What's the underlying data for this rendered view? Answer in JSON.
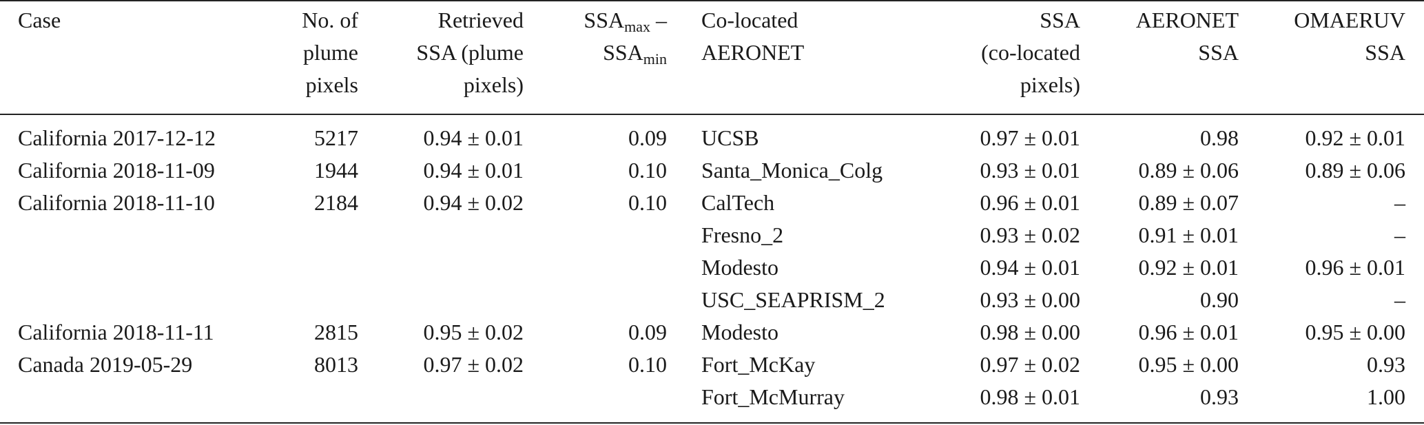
{
  "header": {
    "case": [
      "Case"
    ],
    "plume_pixels": [
      "No. of",
      "plume",
      "pixels"
    ],
    "retrieved_ssa": [
      "Retrieved",
      "SSA (plume",
      "pixels)"
    ],
    "ssa_range": {
      "line1_base": "SSA",
      "line1_sub": "max",
      "line1_tail": " –",
      "line2_base": "SSA",
      "line2_sub": "min"
    },
    "colocated_aeronet": [
      "Co-located",
      "AERONET"
    ],
    "ssa_colocated": [
      "SSA",
      "(co-located",
      "pixels)"
    ],
    "aeronet_ssa": [
      "AERONET",
      "SSA"
    ],
    "omaeruv_ssa": [
      "OMAERUV",
      "SSA"
    ]
  },
  "rows": [
    {
      "case": "California 2017-12-12",
      "pixels": "5217",
      "retrieved": "0.94 ± 0.01",
      "diff": "0.09",
      "site": "UCSB",
      "ssa_coloc": "0.97 ± 0.01",
      "aeronet": "0.98",
      "omaeruv": "0.92 ± 0.01"
    },
    {
      "case": "California 2018-11-09",
      "pixels": "1944",
      "retrieved": "0.94 ± 0.01",
      "diff": "0.10",
      "site": "Santa_Monica_Colg",
      "ssa_coloc": "0.93 ± 0.01",
      "aeronet": "0.89 ± 0.06",
      "omaeruv": "0.89 ± 0.06"
    },
    {
      "case": "California 2018-11-10",
      "pixels": "2184",
      "retrieved": "0.94 ± 0.02",
      "diff": "0.10",
      "site": "CalTech",
      "ssa_coloc": "0.96 ± 0.01",
      "aeronet": "0.89 ± 0.07",
      "omaeruv": "–"
    },
    {
      "case": "",
      "pixels": "",
      "retrieved": "",
      "diff": "",
      "site": "Fresno_2",
      "ssa_coloc": "0.93 ± 0.02",
      "aeronet": "0.91 ± 0.01",
      "omaeruv": "–"
    },
    {
      "case": "",
      "pixels": "",
      "retrieved": "",
      "diff": "",
      "site": "Modesto",
      "ssa_coloc": "0.94 ± 0.01",
      "aeronet": "0.92 ± 0.01",
      "omaeruv": "0.96 ± 0.01"
    },
    {
      "case": "",
      "pixels": "",
      "retrieved": "",
      "diff": "",
      "site": "USC_SEAPRISM_2",
      "ssa_coloc": "0.93 ± 0.00",
      "aeronet": "0.90",
      "omaeruv": "–"
    },
    {
      "case": "California 2018-11-11",
      "pixels": "2815",
      "retrieved": "0.95 ± 0.02",
      "diff": "0.09",
      "site": "Modesto",
      "ssa_coloc": "0.98 ± 0.00",
      "aeronet": "0.96 ± 0.01",
      "omaeruv": "0.95 ± 0.00"
    },
    {
      "case": "Canada 2019-05-29",
      "pixels": "8013",
      "retrieved": "0.97 ± 0.02",
      "diff": "0.10",
      "site": "Fort_McKay",
      "ssa_coloc": "0.97 ± 0.02",
      "aeronet": "0.95 ± 0.00",
      "omaeruv": "0.93"
    },
    {
      "case": "",
      "pixels": "",
      "retrieved": "",
      "diff": "",
      "site": "Fort_McMurray",
      "ssa_coloc": "0.98 ± 0.01",
      "aeronet": "0.93",
      "omaeruv": "1.00"
    }
  ]
}
